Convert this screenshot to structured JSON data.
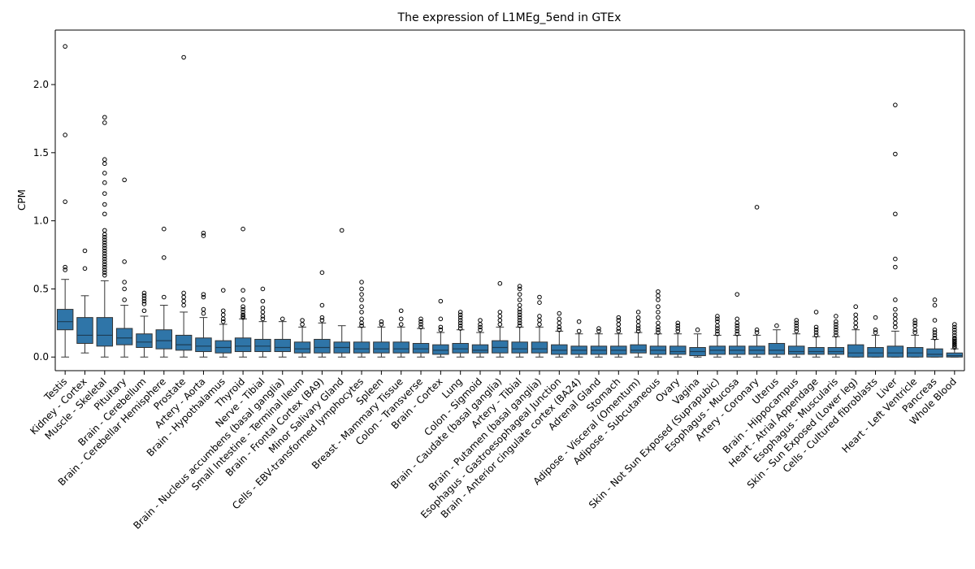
{
  "chart_data": {
    "type": "box",
    "title": "The expression of L1MEg_5end in GTEx",
    "xlabel": "",
    "ylabel": "CPM",
    "ylim": [
      -0.1,
      2.4
    ],
    "yticks": [
      0.0,
      0.5,
      1.0,
      1.5,
      2.0
    ],
    "ytick_labels": [
      "0.0",
      "0.5",
      "1.0",
      "1.5",
      "2.0"
    ],
    "color": "#2f75a8",
    "categories": [
      {
        "name": "Testis",
        "stats": [
          0.0,
          0.2,
          0.26,
          0.35,
          0.57
        ],
        "outliers": [
          0.64,
          0.66,
          1.14,
          1.63,
          2.28
        ]
      },
      {
        "name": "Kidney - Cortex",
        "stats": [
          0.03,
          0.1,
          0.16,
          0.29,
          0.45
        ],
        "outliers": [
          0.65,
          0.78
        ]
      },
      {
        "name": "Muscle - Skeletal",
        "stats": [
          0.0,
          0.08,
          0.16,
          0.29,
          0.56
        ],
        "outliers": [
          0.6,
          0.62,
          0.64,
          0.66,
          0.68,
          0.7,
          0.72,
          0.74,
          0.76,
          0.78,
          0.8,
          0.82,
          0.84,
          0.86,
          0.88,
          0.9,
          0.93,
          1.05,
          1.12,
          1.2,
          1.28,
          1.35,
          1.42,
          1.45,
          1.72,
          1.76
        ]
      },
      {
        "name": "Pituitary",
        "stats": [
          0.0,
          0.09,
          0.14,
          0.21,
          0.38
        ],
        "outliers": [
          0.42,
          0.5,
          0.55,
          0.7,
          1.3
        ]
      },
      {
        "name": "Brain - Cerebellum",
        "stats": [
          0.0,
          0.07,
          0.11,
          0.17,
          0.3
        ],
        "outliers": [
          0.34,
          0.39,
          0.41,
          0.43,
          0.45,
          0.47
        ]
      },
      {
        "name": "Brain - Cerebellar Hemisphere",
        "stats": [
          0.0,
          0.06,
          0.12,
          0.2,
          0.38
        ],
        "outliers": [
          0.44,
          0.73,
          0.94
        ]
      },
      {
        "name": "Prostate",
        "stats": [
          0.0,
          0.05,
          0.09,
          0.16,
          0.33
        ],
        "outliers": [
          0.38,
          0.41,
          0.44,
          0.47,
          2.2
        ]
      },
      {
        "name": "Artery - Aorta",
        "stats": [
          0.0,
          0.04,
          0.08,
          0.14,
          0.29
        ],
        "outliers": [
          0.32,
          0.35,
          0.44,
          0.46,
          0.89,
          0.91
        ]
      },
      {
        "name": "Brain - Hypothalamus",
        "stats": [
          0.0,
          0.03,
          0.07,
          0.12,
          0.24
        ],
        "outliers": [
          0.26,
          0.28,
          0.31,
          0.34,
          0.49
        ]
      },
      {
        "name": "Thyroid",
        "stats": [
          0.0,
          0.04,
          0.08,
          0.14,
          0.28
        ],
        "outliers": [
          0.29,
          0.3,
          0.31,
          0.33,
          0.35,
          0.37,
          0.42,
          0.49,
          0.94
        ]
      },
      {
        "name": "Nerve - Tibial",
        "stats": [
          0.0,
          0.04,
          0.08,
          0.13,
          0.26
        ],
        "outliers": [
          0.28,
          0.3,
          0.33,
          0.36,
          0.41,
          0.5
        ]
      },
      {
        "name": "Brain - Nucleus accumbens (basal ganglia)",
        "stats": [
          0.0,
          0.04,
          0.07,
          0.13,
          0.26
        ],
        "outliers": [
          0.28
        ]
      },
      {
        "name": "Small Intestine - Terminal Ileum",
        "stats": [
          0.0,
          0.03,
          0.06,
          0.11,
          0.22
        ],
        "outliers": [
          0.24,
          0.27
        ]
      },
      {
        "name": "Brain - Frontal Cortex (BA9)",
        "stats": [
          0.0,
          0.03,
          0.07,
          0.13,
          0.25
        ],
        "outliers": [
          0.27,
          0.29,
          0.38,
          0.62
        ]
      },
      {
        "name": "Minor Salivary Gland",
        "stats": [
          0.0,
          0.03,
          0.07,
          0.11,
          0.23
        ],
        "outliers": [
          0.93
        ]
      },
      {
        "name": "Cells - EBV-transformed lymphocytes",
        "stats": [
          0.0,
          0.03,
          0.06,
          0.11,
          0.22
        ],
        "outliers": [
          0.23,
          0.25,
          0.28,
          0.33,
          0.37,
          0.42,
          0.46,
          0.5,
          0.55
        ]
      },
      {
        "name": "Spleen",
        "stats": [
          0.0,
          0.03,
          0.06,
          0.11,
          0.22
        ],
        "outliers": [
          0.24,
          0.26
        ]
      },
      {
        "name": "Breast - Mammary Tissue",
        "stats": [
          0.0,
          0.03,
          0.06,
          0.11,
          0.22
        ],
        "outliers": [
          0.24,
          0.28,
          0.34
        ]
      },
      {
        "name": "Colon - Transverse",
        "stats": [
          0.0,
          0.03,
          0.06,
          0.1,
          0.21
        ],
        "outliers": [
          0.22,
          0.24,
          0.26,
          0.28
        ]
      },
      {
        "name": "Brain - Cortex",
        "stats": [
          0.0,
          0.02,
          0.05,
          0.09,
          0.18
        ],
        "outliers": [
          0.2,
          0.22,
          0.28,
          0.41
        ]
      },
      {
        "name": "Lung",
        "stats": [
          0.0,
          0.03,
          0.06,
          0.1,
          0.2
        ],
        "outliers": [
          0.21,
          0.23,
          0.25,
          0.27,
          0.29,
          0.31,
          0.33
        ]
      },
      {
        "name": "Colon - Sigmoid",
        "stats": [
          0.0,
          0.03,
          0.05,
          0.09,
          0.18
        ],
        "outliers": [
          0.2,
          0.22,
          0.24,
          0.27
        ]
      },
      {
        "name": "Brain - Caudate (basal ganglia)",
        "stats": [
          0.0,
          0.03,
          0.07,
          0.12,
          0.22
        ],
        "outliers": [
          0.24,
          0.27,
          0.3,
          0.33,
          0.54
        ]
      },
      {
        "name": "Artery - Tibial",
        "stats": [
          0.0,
          0.03,
          0.06,
          0.11,
          0.22
        ],
        "outliers": [
          0.23,
          0.25,
          0.27,
          0.29,
          0.31,
          0.33,
          0.35,
          0.38,
          0.42,
          0.46,
          0.5,
          0.52
        ]
      },
      {
        "name": "Brain - Putamen (basal ganglia)",
        "stats": [
          0.0,
          0.03,
          0.06,
          0.11,
          0.22
        ],
        "outliers": [
          0.24,
          0.27,
          0.3,
          0.4,
          0.44
        ]
      },
      {
        "name": "Esophagus - Gastroesophageal Junction",
        "stats": [
          0.0,
          0.02,
          0.05,
          0.09,
          0.19
        ],
        "outliers": [
          0.2,
          0.22,
          0.25,
          0.28,
          0.32
        ]
      },
      {
        "name": "Brain - Anterior cingulate cortex (BA24)",
        "stats": [
          0.0,
          0.02,
          0.05,
          0.08,
          0.17
        ],
        "outliers": [
          0.19,
          0.26
        ]
      },
      {
        "name": "Adrenal Gland",
        "stats": [
          0.0,
          0.02,
          0.05,
          0.08,
          0.17
        ],
        "outliers": [
          0.19,
          0.21
        ]
      },
      {
        "name": "Stomach",
        "stats": [
          0.0,
          0.02,
          0.05,
          0.08,
          0.17
        ],
        "outliers": [
          0.19,
          0.21,
          0.24,
          0.27,
          0.29
        ]
      },
      {
        "name": "Adipose - Visceral (Omentum)",
        "stats": [
          0.0,
          0.03,
          0.05,
          0.09,
          0.18
        ],
        "outliers": [
          0.19,
          0.21,
          0.23,
          0.26,
          0.29,
          0.33
        ]
      },
      {
        "name": "Adipose - Subcutaneous",
        "stats": [
          0.0,
          0.02,
          0.05,
          0.08,
          0.17
        ],
        "outliers": [
          0.18,
          0.2,
          0.22,
          0.25,
          0.29,
          0.33,
          0.37,
          0.42,
          0.45,
          0.48
        ]
      },
      {
        "name": "Ovary",
        "stats": [
          0.0,
          0.02,
          0.04,
          0.08,
          0.17
        ],
        "outliers": [
          0.19,
          0.21,
          0.23,
          0.25
        ]
      },
      {
        "name": "Vagina",
        "stats": [
          0.0,
          0.01,
          0.04,
          0.07,
          0.17
        ],
        "outliers": [
          0.2
        ]
      },
      {
        "name": "Skin - Not Sun Exposed (Suprapubic)",
        "stats": [
          0.0,
          0.02,
          0.05,
          0.08,
          0.16
        ],
        "outliers": [
          0.17,
          0.19,
          0.21,
          0.23,
          0.26,
          0.28,
          0.3
        ]
      },
      {
        "name": "Esophagus - Mucosa",
        "stats": [
          0.0,
          0.02,
          0.05,
          0.08,
          0.16
        ],
        "outliers": [
          0.17,
          0.19,
          0.21,
          0.23,
          0.25,
          0.28,
          0.46
        ]
      },
      {
        "name": "Artery - Coronary",
        "stats": [
          0.0,
          0.02,
          0.05,
          0.08,
          0.16
        ],
        "outliers": [
          0.18,
          0.2,
          1.1
        ]
      },
      {
        "name": "Uterus",
        "stats": [
          0.0,
          0.02,
          0.05,
          0.1,
          0.2
        ],
        "outliers": [
          0.23
        ]
      },
      {
        "name": "Brain - Hippocampus",
        "stats": [
          0.0,
          0.02,
          0.04,
          0.08,
          0.17
        ],
        "outliers": [
          0.19,
          0.21,
          0.23,
          0.25,
          0.27
        ]
      },
      {
        "name": "Heart - Atrial Appendage",
        "stats": [
          0.0,
          0.02,
          0.04,
          0.07,
          0.15
        ],
        "outliers": [
          0.16,
          0.18,
          0.2,
          0.22,
          0.33
        ]
      },
      {
        "name": "Esophagus - Muscularis",
        "stats": [
          0.0,
          0.02,
          0.04,
          0.07,
          0.15
        ],
        "outliers": [
          0.16,
          0.18,
          0.2,
          0.22,
          0.24,
          0.26,
          0.3
        ]
      },
      {
        "name": "Skin - Sun Exposed (Lower leg)",
        "stats": [
          0.0,
          0.0,
          0.03,
          0.09,
          0.2
        ],
        "outliers": [
          0.22,
          0.25,
          0.28,
          0.31,
          0.37
        ]
      },
      {
        "name": "Cells - Cultured fibroblasts",
        "stats": [
          0.0,
          0.0,
          0.03,
          0.07,
          0.16
        ],
        "outliers": [
          0.18,
          0.2,
          0.29
        ]
      },
      {
        "name": "Liver",
        "stats": [
          0.0,
          0.0,
          0.03,
          0.08,
          0.19
        ],
        "outliers": [
          0.22,
          0.25,
          0.28,
          0.31,
          0.35,
          0.42,
          0.66,
          0.72,
          1.05,
          1.49,
          1.85
        ]
      },
      {
        "name": "Heart - Left Ventricle",
        "stats": [
          0.0,
          0.0,
          0.03,
          0.07,
          0.16
        ],
        "outliers": [
          0.18,
          0.2,
          0.23,
          0.25,
          0.27
        ]
      },
      {
        "name": "Pancreas",
        "stats": [
          0.0,
          0.0,
          0.02,
          0.06,
          0.13
        ],
        "outliers": [
          0.14,
          0.16,
          0.18,
          0.2,
          0.27,
          0.38,
          0.42
        ]
      },
      {
        "name": "Whole Blood",
        "stats": [
          0.0,
          0.0,
          0.01,
          0.03,
          0.06
        ],
        "outliers": [
          0.07,
          0.08,
          0.09,
          0.1,
          0.11,
          0.12,
          0.13,
          0.14,
          0.16,
          0.18,
          0.2,
          0.22,
          0.24
        ]
      }
    ]
  }
}
